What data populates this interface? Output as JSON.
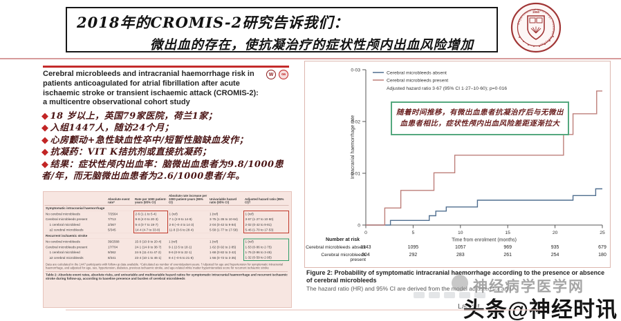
{
  "slide": {
    "title_line1": "2018年的CROMIS-2研究告诉我们：",
    "title_line2": "微出血的存在，使抗凝治疗的症状性颅内出血风险增加",
    "bullet_glyph": "◆"
  },
  "logo": {
    "ring_text": "Department of Neurology Huashan Hospital",
    "year": "1950",
    "color": "#a03535"
  },
  "paper": {
    "title": "Cerebral microbleeds and intracranial haemorrhage risk in patients anticoagulated for atrial fibrillation after acute ischaemic stroke or transient ischaemic attack (CROMIS-2): a multicentre observational cohort study",
    "icons": [
      {
        "name": "web-appendix-icon",
        "glyph": "W"
      },
      {
        "name": "open-access-icon",
        "glyph": "oa"
      }
    ]
  },
  "bullets": [
    "18 岁以上，英国79家医院，荷兰1家；",
    "入组1447人，随访24个月；",
    "心房颤动+急性缺血性卒中/短暂性脑缺血发作；",
    "抗凝药：VIT K拮抗剂或直接抗凝药；",
    "结果：症状性颅内出血率：脑微出血患者为9.8/1000患者/年，而无脑微出血患者为2.6/1000患者/年。"
  ],
  "table": {
    "headers": [
      "",
      "Absolute event rate*",
      "Rate per 1000 patient-years (95% CI)",
      "Absolute rate increase per 1000 patient-years (95% CI)",
      "Univariable hazard ratio (95% CI)",
      "Adjusted hazard ratio (95% CI)†"
    ],
    "sections": [
      {
        "name": "Symptomatic intracranial haemorrhage",
        "highlight": "red",
        "rows": [
          [
            "No cerebral microbleeds",
            "7/2564",
            "2·6 (1·1 to 5·4)",
            "1 (ref)",
            "1 (ref)",
            "1 (ref)"
          ],
          [
            "Cerebral microbleeds present",
            "7/713",
            "9·8 (4·0 to 20·3)",
            "7·1 (2·9 to 14·8)",
            "3·75 (1·35 to 10·64)",
            "3·67 (1·27 to 10·60)"
          ],
          [
            "1 cerebral microbleed",
            "2/367",
            "5·4 (0·7 to 19·7)",
            "2·8 (–0·4 to 14·3)",
            "2·04 (0·42 to 9·84)",
            "2·02 (0·42 to 9·81)"
          ],
          [
            "≥2 cerebral microbleeds",
            "5/345",
            "14·4 (4·7 to 33·8)",
            "11·8 (3·6 to 28·4)",
            "5·58 (1·77 to 17·58)",
            "5·46 (1·70 to 17·53)"
          ]
        ]
      },
      {
        "name": "Recurrent ischaemic stroke",
        "highlight": "green",
        "rows": [
          [
            "No cerebral microbleeds",
            "39/2568",
            "15·0 (10·9 to 20·4)",
            "1 (ref)",
            "1 (ref)",
            "1 (ref)"
          ],
          [
            "Cerebral microbleeds present",
            "17/704",
            "24·1 (14·9 to 38·7)",
            "9·1 (2·5 to 18·1)",
            "1·62 (0·92 to 2·85)",
            "1·53 (0·86 to 2·75)"
          ],
          [
            "1 cerebral microbleed",
            "9/362",
            "24·5 (11·4 to 47·2)",
            "9·6 (0·9 to 22·1)",
            "1·68 (0·82 to 3·42)",
            "1·75 (0·86 to 3·45)"
          ],
          [
            "≥2 cerebral microbleeds",
            "8/341",
            "23·4 (10·1 to 46·1)",
            "8·4 (–0·5 to 21·8)",
            "1·56 (0·72 to 3·35)",
            "1·32 (0·59 to 2·95)"
          ]
        ]
      }
    ],
    "footnote": "Data are calculated in the 1447 participants with follow-up data available. *Calculated as number of events/patient-years. †Adjusted for age and hypertension for symptomatic intracranial haemorrhage, and adjusted for age, sex, hypertension, diabetes, previous ischaemic stroke, and age-related white matter hyperintensities score for recurrent ischaemic stroke",
    "caption": "Table 2: Absolute event rates, absolute risks, and univariable and multivariable hazard ratios for symptomatic intracranial haemorrhage and recurrent ischaemic stroke during follow-up, according to baseline presence and burden of cerebral microbleeds"
  },
  "chart_data": {
    "type": "line",
    "xlabel": "Time from enrolment (months)",
    "ylabel": "Intracranial haemorrhage rate",
    "xlim": [
      0,
      25
    ],
    "ylim": [
      0,
      0.03
    ],
    "xticks": [
      0,
      5,
      10,
      15,
      20,
      25
    ],
    "yticks": [
      {
        "label": "0",
        "value": 0
      },
      {
        "label": "0·01",
        "value": 0.01
      },
      {
        "label": "0·02",
        "value": 0.02
      },
      {
        "label": "0·03",
        "value": 0.03
      }
    ],
    "legend": [
      {
        "name": "Cerebral microbleeds absent",
        "color": "#4f6e8f"
      },
      {
        "name": "Cerebral microbleeds present",
        "color": "#bd7e79"
      }
    ],
    "stat_line": "Adjusted hazard ratio 3·67 (95% CI 1·27–10·60); p=0·016",
    "annotation": "随着时间推移，有微出血患者抗凝治疗后与无微出血患者相比，症状性颅内出血风险差距逐渐拉大",
    "series": [
      {
        "name": "Cerebral microbleeds absent",
        "color": "#4f6e8f",
        "steps": [
          [
            0,
            0
          ],
          [
            2.6,
            0
          ],
          [
            2.6,
            0.0009
          ],
          [
            6.7,
            0.0009
          ],
          [
            6.7,
            0.0018
          ],
          [
            7.4,
            0.0018
          ],
          [
            7.4,
            0.0027
          ],
          [
            8.5,
            0.0027
          ],
          [
            8.5,
            0.0035
          ],
          [
            11.8,
            0.0035
          ],
          [
            11.8,
            0.0048
          ],
          [
            21.9,
            0.0048
          ],
          [
            21.9,
            0.0057
          ],
          [
            24.3,
            0.0057
          ],
          [
            24.3,
            0.007
          ],
          [
            25,
            0.007
          ]
        ]
      },
      {
        "name": "Cerebral microbleeds present",
        "color": "#bd7e79",
        "steps": [
          [
            0,
            0
          ],
          [
            2,
            0
          ],
          [
            2,
            0.0033
          ],
          [
            3.7,
            0.0033
          ],
          [
            3.7,
            0.0067
          ],
          [
            7.2,
            0.0067
          ],
          [
            7.2,
            0.0101
          ],
          [
            9.4,
            0.0101
          ],
          [
            9.4,
            0.0135
          ],
          [
            20.9,
            0.0135
          ],
          [
            20.9,
            0.0175
          ],
          [
            21.9,
            0.0175
          ],
          [
            21.9,
            0.0215
          ],
          [
            24.4,
            0.0215
          ],
          [
            24.4,
            0.0259
          ],
          [
            25,
            0.0259
          ]
        ]
      }
    ],
    "number_at_risk": {
      "title": "Number at risk",
      "rows": [
        {
          "label": "Cerebral microbleeds absent",
          "values": [
            1143,
            1095,
            1057,
            969,
            935,
            679
          ]
        },
        {
          "label": "Cerebral microbleeds present",
          "values": [
            304,
            292,
            283,
            261,
            254,
            180
          ]
        }
      ]
    }
  },
  "figure_caption": {
    "title": "Figure 2: Probability of symptomatic intracranial haemorrhage according to the presence or absence of cerebral microbleeds",
    "note": "The hazard ratio (HR) and 95% CI are derived from the model adjusted for age"
  },
  "footer": {
    "lancet_text": "Lancet",
    "watermark_site": "神经病学医学网",
    "watermark_toutiao": "头条@神经时讯"
  }
}
